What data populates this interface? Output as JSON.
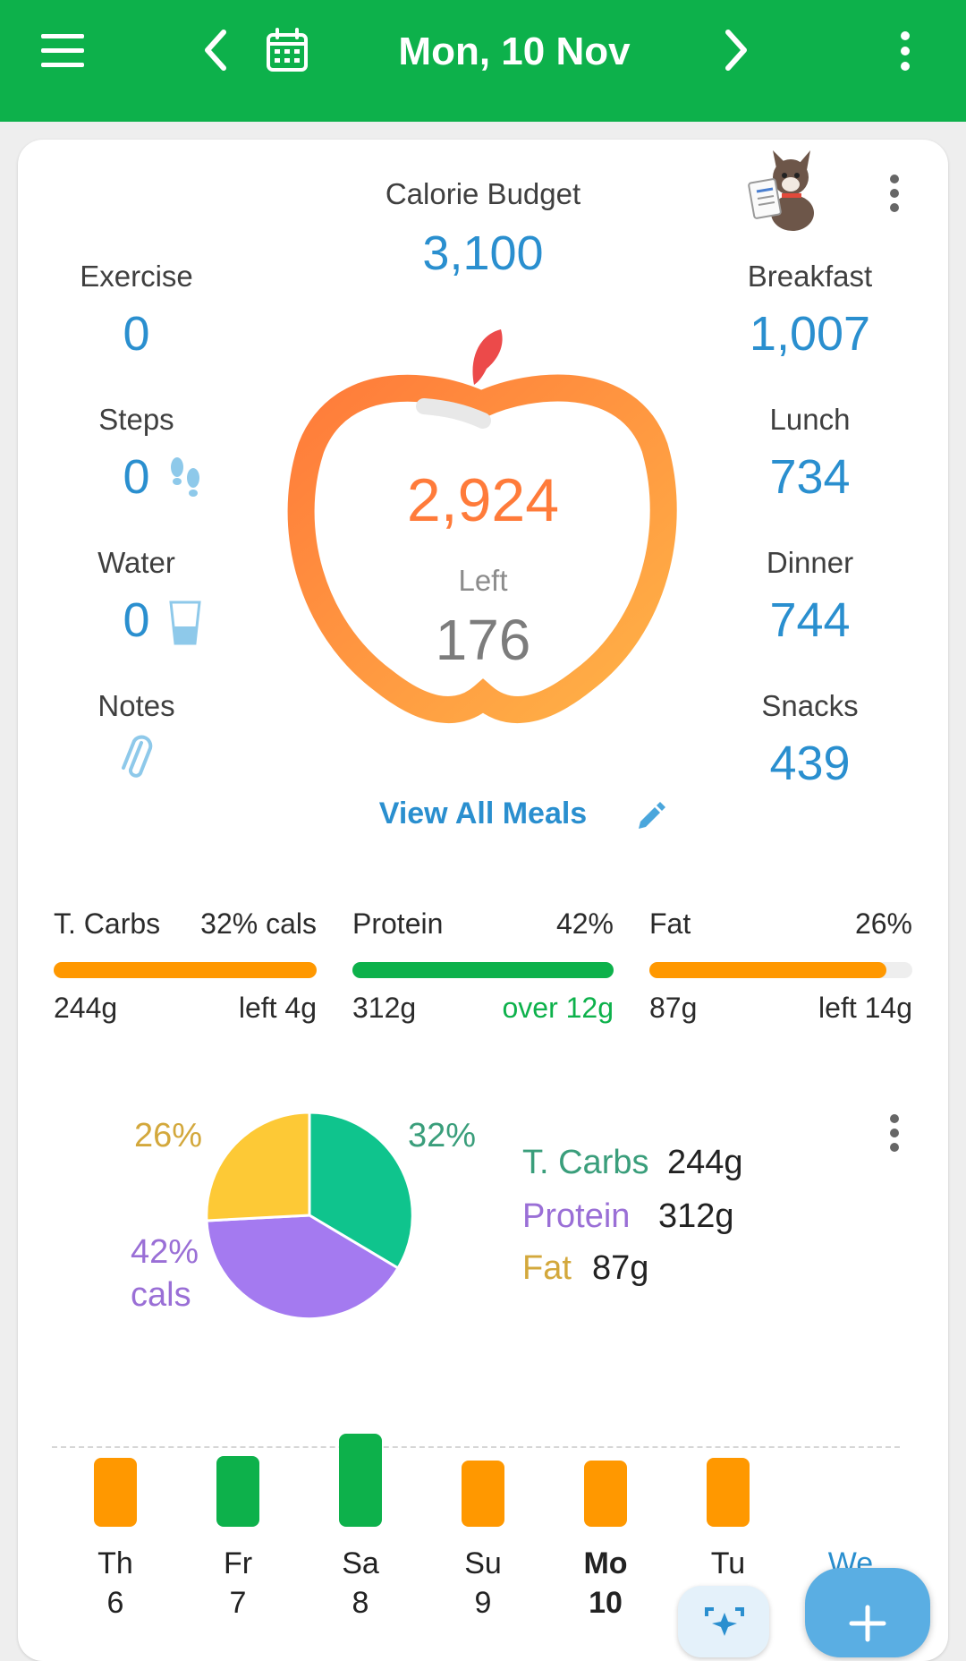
{
  "header": {
    "date": "Mon, 10 Nov",
    "menu_icon": "hamburger-menu-icon",
    "prev_icon": "chevron-left-icon",
    "calendar_icon": "calendar-icon",
    "next_icon": "chevron-right-icon",
    "overflow_icon": "kebab-menu-icon"
  },
  "summary": {
    "calorie_budget_label": "Calorie Budget",
    "calorie_budget_value": "3,100",
    "consumed_value": "2,924",
    "left_label": "Left",
    "left_value": "176",
    "view_all_meals": "View All Meals",
    "left_column": [
      {
        "label": "Exercise",
        "value": "0"
      },
      {
        "label": "Steps",
        "value": "0"
      },
      {
        "label": "Water",
        "value": "0"
      },
      {
        "label": "Notes",
        "value": ""
      }
    ],
    "right_column": [
      {
        "label": "Breakfast",
        "value": "1,007"
      },
      {
        "label": "Lunch",
        "value": "734"
      },
      {
        "label": "Dinner",
        "value": "744"
      },
      {
        "label": "Snacks",
        "value": "439"
      }
    ],
    "colors": {
      "accent_blue": "#2a8fcf",
      "orange": "#ff8c3a",
      "green": "#0db14b"
    }
  },
  "macros": [
    {
      "name": "T. Carbs",
      "pct": "32% cals",
      "grams": "244g",
      "status": "left 4g",
      "fill": 1.0,
      "color": "#ff9800",
      "status_color": "#2b2b2b"
    },
    {
      "name": "Protein",
      "pct": "42%",
      "grams": "312g",
      "status": "over 12g",
      "fill": 1.0,
      "color": "#0db14b",
      "status_color": "#0db14b"
    },
    {
      "name": "Fat",
      "pct": "26%",
      "grams": "87g",
      "status": "left 14g",
      "fill": 0.9,
      "color": "#ff9800",
      "status_color": "#2b2b2b"
    }
  ],
  "pie": {
    "labels": {
      "fat": "26%",
      "carbs": "32%",
      "protein_line1": "42%",
      "protein_line2": "cals"
    },
    "legend": [
      {
        "name": "T. Carbs",
        "value": "244g",
        "color": "#3a9e7b"
      },
      {
        "name": "Protein",
        "value": "312g",
        "color": "#9a6fd6"
      },
      {
        "name": "Fat",
        "value": "87g",
        "color": "#d3a83c"
      }
    ]
  },
  "week": [
    {
      "day": "Th",
      "num": "6",
      "status": "under",
      "level": 0.86
    },
    {
      "day": "Fr",
      "num": "7",
      "status": "over",
      "level": 0.88
    },
    {
      "day": "Sa",
      "num": "8",
      "status": "over",
      "level": 1.16
    },
    {
      "day": "Su",
      "num": "9",
      "status": "under",
      "level": 0.82
    },
    {
      "day": "Mo",
      "num": "10",
      "status": "under",
      "level": 0.82
    },
    {
      "day": "Tu",
      "num": "",
      "status": "under",
      "level": 0.86
    },
    {
      "day": "We",
      "num": "",
      "status": "none",
      "level": 0
    }
  ]
}
